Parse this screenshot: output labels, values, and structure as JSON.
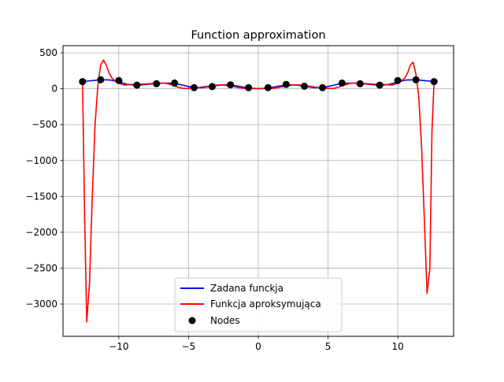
{
  "chart_data": {
    "type": "line",
    "title": "Function approximation",
    "xlabel": "",
    "ylabel": "",
    "xlim": [
      -14,
      14
    ],
    "ylim": [
      -3450,
      600
    ],
    "xticks": [
      -10,
      -5,
      0,
      5,
      10
    ],
    "yticks": [
      500,
      0,
      -500,
      -1000,
      -1500,
      -2000,
      -2500,
      -3000
    ],
    "xtick_labels": [
      "−10",
      "−5",
      "0",
      "5",
      "10"
    ],
    "ytick_labels": [
      "500",
      "0",
      "−500",
      "−1000",
      "−1500",
      "−2000",
      "−2500",
      "−3000"
    ],
    "grid": true,
    "legend_position": "lower center",
    "series": [
      {
        "name": "Zadana funckja",
        "type": "line",
        "color": "#0000ff",
        "x": [
          -12.6,
          -12.0,
          -11.3,
          -10.6,
          -10.0,
          -9.4,
          -8.7,
          -8.0,
          -7.3,
          -6.7,
          -6.0,
          -5.3,
          -4.6,
          -4.0,
          -3.3,
          -2.6,
          -2.0,
          -1.3,
          -0.7,
          0.0,
          0.7,
          1.3,
          2.0,
          2.6,
          3.3,
          4.0,
          4.6,
          5.3,
          6.0,
          6.7,
          7.3,
          8.0,
          8.7,
          9.4,
          10.0,
          10.6,
          11.3,
          12.0,
          12.6
        ],
        "y": [
          100,
          112,
          125,
          122,
          95,
          60,
          48,
          60,
          73,
          78,
          75,
          45,
          15,
          15,
          35,
          55,
          52,
          30,
          10,
          2,
          10,
          30,
          52,
          55,
          35,
          15,
          15,
          45,
          75,
          78,
          73,
          60,
          48,
          60,
          95,
          122,
          125,
          112,
          100
        ]
      },
      {
        "name": "Funkcja aproksymująca",
        "type": "line",
        "color": "#ff0000",
        "x": [
          -12.6,
          -12.45,
          -12.3,
          -12.1,
          -11.9,
          -11.7,
          -11.5,
          -11.3,
          -11.1,
          -10.9,
          -10.7,
          -10.5,
          -10.2,
          -9.9,
          -9.6,
          -9.3,
          -9.0,
          -8.6,
          -8.2,
          -7.8,
          -7.4,
          -7.0,
          -6.6,
          -6.2,
          -5.8,
          -5.4,
          -5.0,
          -4.6,
          -4.2,
          -3.8,
          -3.4,
          -3.0,
          -2.6,
          -2.2,
          -1.8,
          -1.4,
          -1.0,
          -0.6,
          -0.2,
          0.2,
          0.6,
          1.0,
          1.4,
          1.8,
          2.2,
          2.6,
          3.0,
          3.4,
          3.8,
          4.2,
          4.6,
          5.0,
          5.4,
          5.8,
          6.2,
          6.6,
          7.0,
          7.4,
          7.8,
          8.2,
          8.6,
          9.0,
          9.3,
          9.6,
          9.9,
          10.2,
          10.5,
          10.7,
          10.9,
          11.1,
          11.3,
          11.5,
          11.7,
          11.9,
          12.1,
          12.3,
          12.45,
          12.6
        ],
        "y": [
          100,
          -1800,
          -3250,
          -2700,
          -1500,
          -500,
          50,
          330,
          400,
          330,
          220,
          150,
          100,
          70,
          50,
          55,
          60,
          60,
          65,
          70,
          75,
          80,
          75,
          55,
          25,
          5,
          5,
          10,
          20,
          30,
          40,
          50,
          55,
          45,
          30,
          15,
          5,
          3,
          2,
          2,
          3,
          5,
          15,
          30,
          45,
          55,
          50,
          40,
          30,
          20,
          10,
          5,
          5,
          25,
          55,
          75,
          80,
          75,
          70,
          65,
          60,
          60,
          55,
          50,
          70,
          100,
          150,
          220,
          330,
          370,
          200,
          -100,
          -800,
          -1800,
          -2850,
          -2500,
          -600,
          100
        ]
      },
      {
        "name": "Nodes",
        "type": "scatter",
        "color": "#000000",
        "x": [
          -12.6,
          -11.3,
          -10.0,
          -8.7,
          -7.3,
          -6.0,
          -4.6,
          -3.3,
          -2.0,
          -0.7,
          0.7,
          2.0,
          3.3,
          4.6,
          6.0,
          7.3,
          8.7,
          10.0,
          11.3,
          12.6
        ],
        "y": [
          100,
          125,
          115,
          50,
          70,
          80,
          15,
          30,
          55,
          15,
          15,
          60,
          35,
          15,
          80,
          70,
          50,
          115,
          125,
          100
        ]
      }
    ]
  }
}
